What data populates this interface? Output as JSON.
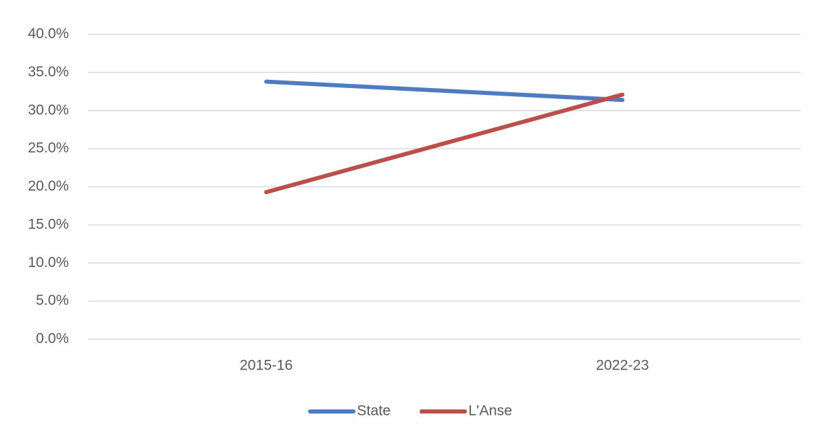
{
  "chart_data": {
    "type": "line",
    "categories": [
      "2015-16",
      "2022-23"
    ],
    "series": [
      {
        "name": "State",
        "color": "#4f7bc0",
        "values": [
          33.8,
          31.4
        ]
      },
      {
        "name": "L'Anse",
        "color": "#b9504c",
        "values": [
          19.3,
          32.1
        ]
      }
    ],
    "ylim": [
      0,
      40
    ],
    "yticks": [
      {
        "value": 0,
        "label": "0.0%"
      },
      {
        "value": 5,
        "label": "5.0%"
      },
      {
        "value": 10,
        "label": "10.0%"
      },
      {
        "value": 15,
        "label": "15.0%"
      },
      {
        "value": 20,
        "label": "20.0%"
      },
      {
        "value": 25,
        "label": "25.0%"
      },
      {
        "value": 30,
        "label": "30.0%"
      },
      {
        "value": 35,
        "label": "35.0%"
      },
      {
        "value": 40,
        "label": "40.0%"
      }
    ],
    "grid": true,
    "legend": "bottom"
  }
}
